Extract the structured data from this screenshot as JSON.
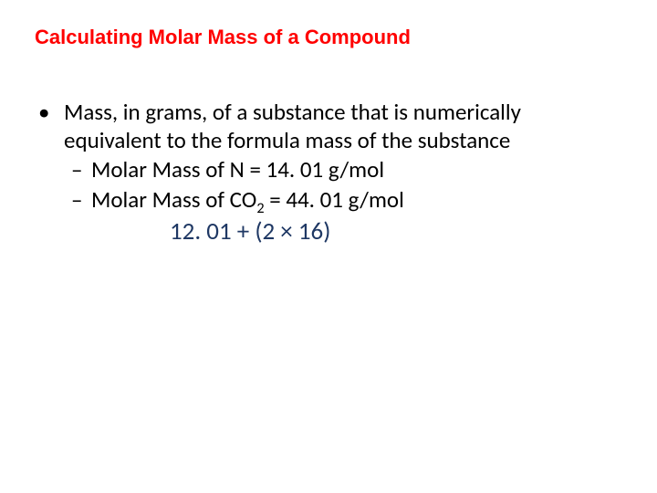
{
  "title": "Calculating Molar Mass of a Compound",
  "title_color": "#ff0000",
  "title_fontsize": 22,
  "body_fontsize": 25,
  "body_color": "#000000",
  "bullet_marker": "•",
  "sub_marker": "–",
  "main_bullet": "Mass, in grams, of a substance that is numerically equivalent to the formula mass of the substance",
  "sub1_prefix": "Molar Mass of N = 14. 01 g/mol",
  "sub2_prefix": "Molar Mass of CO",
  "sub2_subscript": "2",
  "sub2_suffix": " = 44. 01 g/mol",
  "formula_text": "12. 01 + (2 × 16)",
  "formula_color": "#1f3864",
  "formula_fontsize": 27,
  "background_color": "#ffffff"
}
